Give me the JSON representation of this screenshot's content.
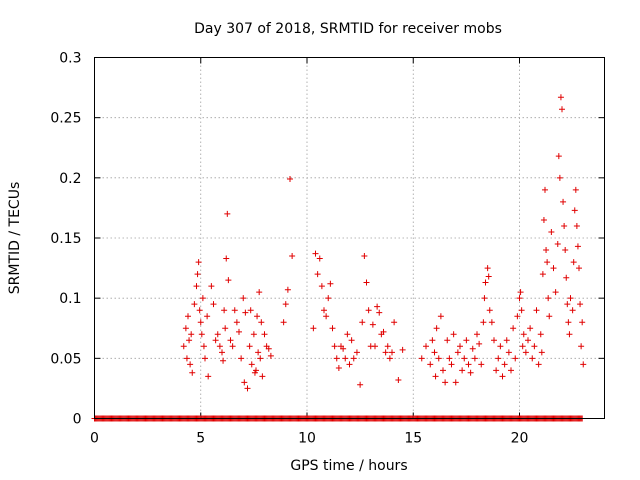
{
  "chart_data": {
    "type": "scatter",
    "title": "Day 307 of 2018, SRMTID for receiver mobs",
    "xlabel": "GPS time / hours",
    "ylabel": "SRMTID / TECUs",
    "xlim": [
      0,
      24
    ],
    "ylim": [
      0,
      0.3
    ],
    "x_ticks": [
      0,
      5,
      10,
      15,
      20
    ],
    "x_tick_labels": [
      "0",
      "5",
      "10",
      "15",
      "20"
    ],
    "y_ticks": [
      0,
      0.05,
      0.1,
      0.15,
      0.2,
      0.25,
      0.3
    ],
    "y_tick_labels": [
      "0",
      "0.05",
      "0.1",
      "0.15",
      "0.2",
      "0.25",
      "0.3"
    ],
    "grid": true,
    "marker": "+",
    "color": "#e00000",
    "series": [
      {
        "name": "SRMTID",
        "points": [
          [
            4.2,
            0.06
          ],
          [
            4.3,
            0.075
          ],
          [
            4.35,
            0.05
          ],
          [
            4.4,
            0.085
          ],
          [
            4.45,
            0.065
          ],
          [
            4.5,
            0.045
          ],
          [
            4.55,
            0.07
          ],
          [
            4.6,
            0.038
          ],
          [
            4.7,
            0.095
          ],
          [
            4.8,
            0.11
          ],
          [
            4.85,
            0.12
          ],
          [
            4.9,
            0.13
          ],
          [
            4.95,
            0.09
          ],
          [
            5.0,
            0.08
          ],
          [
            5.05,
            0.07
          ],
          [
            5.1,
            0.1
          ],
          [
            5.15,
            0.06
          ],
          [
            5.2,
            0.05
          ],
          [
            5.3,
            0.085
          ],
          [
            5.35,
            0.035
          ],
          [
            5.5,
            0.11
          ],
          [
            5.6,
            0.095
          ],
          [
            5.7,
            0.065
          ],
          [
            5.8,
            0.07
          ],
          [
            5.9,
            0.06
          ],
          [
            6.0,
            0.055
          ],
          [
            6.05,
            0.048
          ],
          [
            6.1,
            0.09
          ],
          [
            6.15,
            0.075
          ],
          [
            6.2,
            0.133
          ],
          [
            6.25,
            0.17
          ],
          [
            6.3,
            0.115
          ],
          [
            6.4,
            0.065
          ],
          [
            6.5,
            0.06
          ],
          [
            6.6,
            0.09
          ],
          [
            6.7,
            0.08
          ],
          [
            6.8,
            0.072
          ],
          [
            6.9,
            0.05
          ],
          [
            7.0,
            0.1
          ],
          [
            7.05,
            0.03
          ],
          [
            7.1,
            0.088
          ],
          [
            7.2,
            0.025
          ],
          [
            7.3,
            0.06
          ],
          [
            7.35,
            0.09
          ],
          [
            7.4,
            0.045
          ],
          [
            7.5,
            0.07
          ],
          [
            7.55,
            0.038
          ],
          [
            7.6,
            0.04
          ],
          [
            7.65,
            0.085
          ],
          [
            7.7,
            0.055
          ],
          [
            7.75,
            0.105
          ],
          [
            7.8,
            0.05
          ],
          [
            7.85,
            0.08
          ],
          [
            7.9,
            0.035
          ],
          [
            8.0,
            0.07
          ],
          [
            8.1,
            0.06
          ],
          [
            8.2,
            0.058
          ],
          [
            8.3,
            0.052
          ],
          [
            8.9,
            0.08
          ],
          [
            9.0,
            0.095
          ],
          [
            9.1,
            0.107
          ],
          [
            9.2,
            0.199
          ],
          [
            9.3,
            0.135
          ],
          [
            10.3,
            0.075
          ],
          [
            10.4,
            0.137
          ],
          [
            10.5,
            0.12
          ],
          [
            10.6,
            0.133
          ],
          [
            10.7,
            0.11
          ],
          [
            10.8,
            0.09
          ],
          [
            10.9,
            0.085
          ],
          [
            11.0,
            0.1
          ],
          [
            11.1,
            0.112
          ],
          [
            11.2,
            0.075
          ],
          [
            11.3,
            0.06
          ],
          [
            11.4,
            0.05
          ],
          [
            11.5,
            0.042
          ],
          [
            11.6,
            0.06
          ],
          [
            11.7,
            0.058
          ],
          [
            11.8,
            0.05
          ],
          [
            11.9,
            0.07
          ],
          [
            12.0,
            0.045
          ],
          [
            12.1,
            0.065
          ],
          [
            12.2,
            0.05
          ],
          [
            12.35,
            0.055
          ],
          [
            12.5,
            0.028
          ],
          [
            12.6,
            0.08
          ],
          [
            12.7,
            0.135
          ],
          [
            12.8,
            0.113
          ],
          [
            12.9,
            0.09
          ],
          [
            13.0,
            0.06
          ],
          [
            13.1,
            0.078
          ],
          [
            13.2,
            0.06
          ],
          [
            13.3,
            0.093
          ],
          [
            13.4,
            0.088
          ],
          [
            13.5,
            0.07
          ],
          [
            13.6,
            0.072
          ],
          [
            13.7,
            0.055
          ],
          [
            13.8,
            0.06
          ],
          [
            13.9,
            0.05
          ],
          [
            14.0,
            0.055
          ],
          [
            14.1,
            0.08
          ],
          [
            14.3,
            0.032
          ],
          [
            14.5,
            0.057
          ],
          [
            15.4,
            0.05
          ],
          [
            15.6,
            0.06
          ],
          [
            15.8,
            0.045
          ],
          [
            15.9,
            0.065
          ],
          [
            16.0,
            0.055
          ],
          [
            16.05,
            0.035
          ],
          [
            16.1,
            0.075
          ],
          [
            16.2,
            0.05
          ],
          [
            16.3,
            0.085
          ],
          [
            16.4,
            0.04
          ],
          [
            16.5,
            0.03
          ],
          [
            16.6,
            0.065
          ],
          [
            16.7,
            0.05
          ],
          [
            16.8,
            0.045
          ],
          [
            16.9,
            0.07
          ],
          [
            17.0,
            0.03
          ],
          [
            17.1,
            0.055
          ],
          [
            17.2,
            0.06
          ],
          [
            17.3,
            0.04
          ],
          [
            17.4,
            0.05
          ],
          [
            17.5,
            0.065
          ],
          [
            17.6,
            0.045
          ],
          [
            17.7,
            0.038
          ],
          [
            17.8,
            0.058
          ],
          [
            17.9,
            0.05
          ],
          [
            18.0,
            0.07
          ],
          [
            18.1,
            0.062
          ],
          [
            18.2,
            0.045
          ],
          [
            18.3,
            0.08
          ],
          [
            18.35,
            0.1
          ],
          [
            18.4,
            0.113
          ],
          [
            18.5,
            0.125
          ],
          [
            18.55,
            0.118
          ],
          [
            18.6,
            0.09
          ],
          [
            18.7,
            0.08
          ],
          [
            18.8,
            0.065
          ],
          [
            18.9,
            0.04
          ],
          [
            19.0,
            0.05
          ],
          [
            19.1,
            0.06
          ],
          [
            19.2,
            0.035
          ],
          [
            19.3,
            0.045
          ],
          [
            19.4,
            0.065
          ],
          [
            19.5,
            0.055
          ],
          [
            19.6,
            0.04
          ],
          [
            19.7,
            0.075
          ],
          [
            19.8,
            0.05
          ],
          [
            19.9,
            0.085
          ],
          [
            20.0,
            0.1
          ],
          [
            20.05,
            0.105
          ],
          [
            20.1,
            0.09
          ],
          [
            20.15,
            0.06
          ],
          [
            20.2,
            0.07
          ],
          [
            20.3,
            0.055
          ],
          [
            20.4,
            0.065
          ],
          [
            20.5,
            0.075
          ],
          [
            20.6,
            0.05
          ],
          [
            20.7,
            0.06
          ],
          [
            20.8,
            0.09
          ],
          [
            20.9,
            0.045
          ],
          [
            21.0,
            0.07
          ],
          [
            21.05,
            0.055
          ],
          [
            21.1,
            0.12
          ],
          [
            21.15,
            0.165
          ],
          [
            21.2,
            0.19
          ],
          [
            21.25,
            0.14
          ],
          [
            21.3,
            0.13
          ],
          [
            21.35,
            0.1
          ],
          [
            21.4,
            0.085
          ],
          [
            21.5,
            0.155
          ],
          [
            21.6,
            0.125
          ],
          [
            21.7,
            0.105
          ],
          [
            21.8,
            0.145
          ],
          [
            21.85,
            0.218
          ],
          [
            21.9,
            0.2
          ],
          [
            21.95,
            0.267
          ],
          [
            22.0,
            0.257
          ],
          [
            22.05,
            0.18
          ],
          [
            22.1,
            0.16
          ],
          [
            22.15,
            0.14
          ],
          [
            22.2,
            0.117
          ],
          [
            22.25,
            0.095
          ],
          [
            22.3,
            0.08
          ],
          [
            22.35,
            0.07
          ],
          [
            22.4,
            0.1
          ],
          [
            22.5,
            0.09
          ],
          [
            22.55,
            0.13
          ],
          [
            22.6,
            0.173
          ],
          [
            22.65,
            0.19
          ],
          [
            22.7,
            0.16
          ],
          [
            22.75,
            0.143
          ],
          [
            22.8,
            0.125
          ],
          [
            22.85,
            0.095
          ],
          [
            22.9,
            0.06
          ],
          [
            22.95,
            0.08
          ],
          [
            23.0,
            0.045
          ]
        ],
        "zeros_x_range": [
          0,
          23
        ]
      }
    ]
  }
}
